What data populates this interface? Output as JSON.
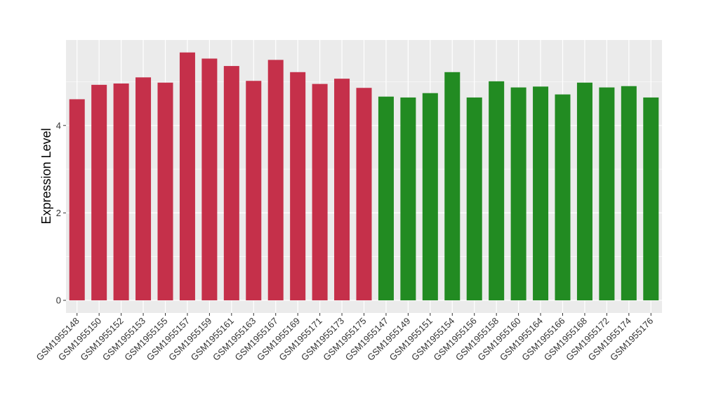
{
  "chart_data": {
    "type": "bar",
    "ylabel": "Expression Level",
    "xlabel": "",
    "ylim": [
      0,
      6
    ],
    "yticks": [
      0,
      2,
      4
    ],
    "grid": true,
    "categories": [
      "GSM1955148",
      "GSM1955150",
      "GSM1955152",
      "GSM1955153",
      "GSM1955155",
      "GSM1955157",
      "GSM1955159",
      "GSM1955161",
      "GSM1955163",
      "GSM1955167",
      "GSM1955169",
      "GSM1955171",
      "GSM1955173",
      "GSM1955175",
      "GSM1955147",
      "GSM1955149",
      "GSM1955151",
      "GSM1955154",
      "GSM1955156",
      "GSM1955158",
      "GSM1955160",
      "GSM1955164",
      "GSM1955166",
      "GSM1955168",
      "GSM1955172",
      "GSM1955174",
      "GSM1955176"
    ],
    "values": [
      4.6,
      4.93,
      4.96,
      5.1,
      4.98,
      5.67,
      5.53,
      5.36,
      5.02,
      5.5,
      5.22,
      4.95,
      5.07,
      4.86,
      4.66,
      4.64,
      4.74,
      5.22,
      4.64,
      5.01,
      4.87,
      4.89,
      4.71,
      4.98,
      4.87,
      4.9,
      4.64
    ],
    "bar_colors": [
      "#c5304a",
      "#c5304a",
      "#c5304a",
      "#c5304a",
      "#c5304a",
      "#c5304a",
      "#c5304a",
      "#c5304a",
      "#c5304a",
      "#c5304a",
      "#c5304a",
      "#c5304a",
      "#c5304a",
      "#c5304a",
      "#228b22",
      "#228b22",
      "#228b22",
      "#228b22",
      "#228b22",
      "#228b22",
      "#228b22",
      "#228b22",
      "#228b22",
      "#228b22",
      "#228b22",
      "#228b22",
      "#228b22"
    ],
    "panel_color": "#ebebeb",
    "grid_color": "#ffffff"
  }
}
